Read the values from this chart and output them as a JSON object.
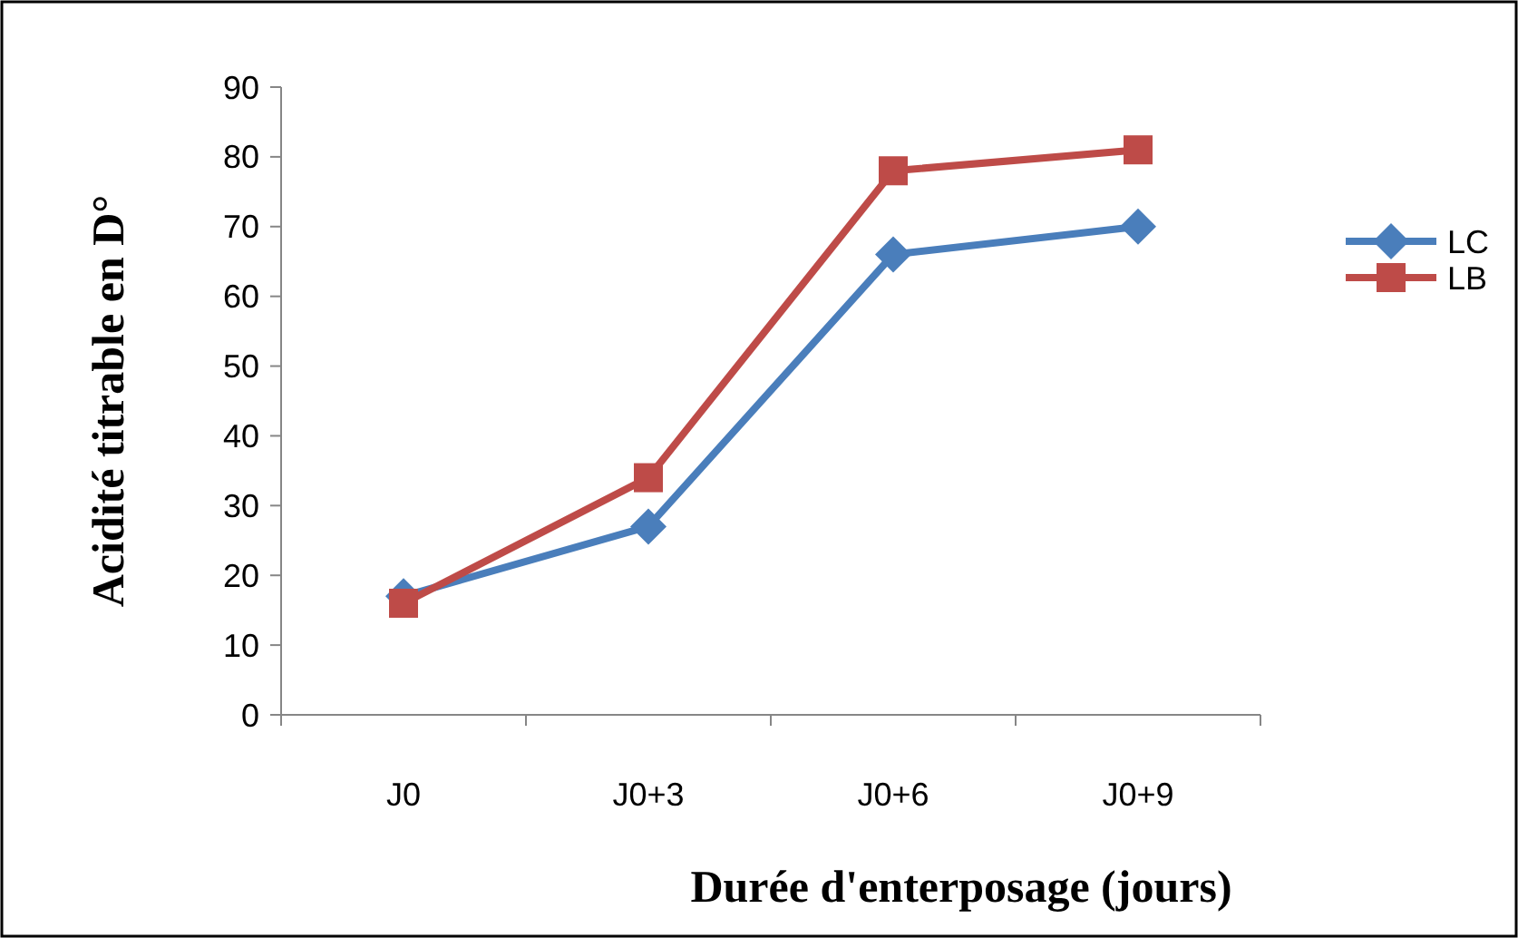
{
  "chart_data": {
    "type": "line",
    "xlabel": "Durée d'enterposage (jours)",
    "ylabel": "Acidité titrable en D°",
    "categories": [
      "J0",
      "J0+3",
      "J0+6",
      "J0+9"
    ],
    "series": [
      {
        "name": "LC",
        "color": "#4a7ebb",
        "values": [
          17,
          27,
          66,
          70
        ],
        "marker": "diamond"
      },
      {
        "name": "LB",
        "color": "#be4b48",
        "values": [
          16,
          34,
          78,
          81
        ],
        "marker": "square"
      }
    ],
    "ylim": [
      0,
      90
    ],
    "yticks": [
      0,
      10,
      20,
      30,
      40,
      50,
      60,
      70,
      80,
      90
    ],
    "grid": false,
    "legend": "right",
    "line_style": "solid"
  }
}
